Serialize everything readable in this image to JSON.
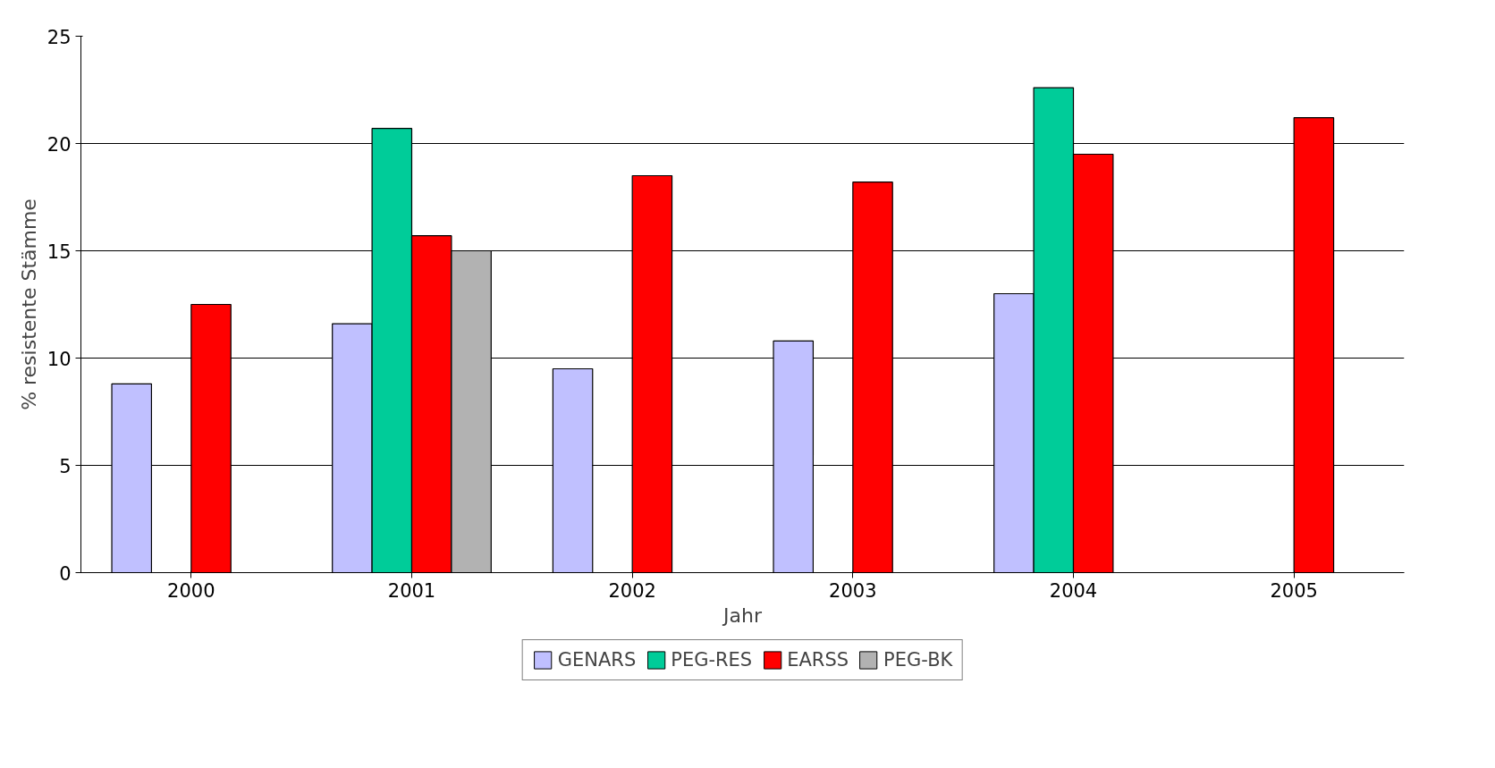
{
  "chart_data": {
    "type": "bar",
    "xlabel": "Jahr",
    "ylabel": "% resistente Stämme",
    "categories": [
      "2000",
      "2001",
      "2002",
      "2003",
      "2004",
      "2005"
    ],
    "series": [
      {
        "name": "GENARS",
        "color": "#c0c0ff",
        "values": [
          8.8,
          11.6,
          9.5,
          10.8,
          13.0,
          null
        ]
      },
      {
        "name": "PEG-RES",
        "color": "#00cc99",
        "values": [
          null,
          20.7,
          null,
          null,
          22.6,
          null
        ]
      },
      {
        "name": "EARSS",
        "color": "#ff0000",
        "values": [
          12.5,
          15.7,
          18.5,
          18.2,
          19.5,
          21.2
        ]
      },
      {
        "name": "PEG-BK",
        "color": "#b2b2b2",
        "values": [
          null,
          15.0,
          null,
          null,
          null,
          null
        ]
      }
    ],
    "ylim": [
      0,
      25
    ],
    "yticks": [
      0,
      5,
      10,
      15,
      20,
      25
    ],
    "grid": "y",
    "legend": "bottom"
  }
}
